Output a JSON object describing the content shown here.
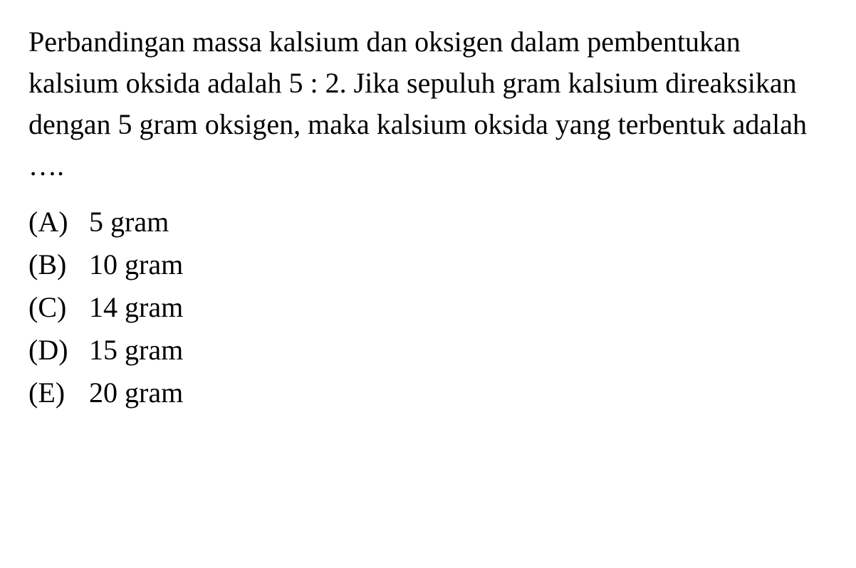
{
  "question": {
    "text": "Perbandingan massa kalsium dan oksigen dalam pembentukan kalsium oksida adalah 5 : 2. Jika sepuluh gram kalsium direaksikan dengan 5 gram oksigen, maka kalsium oksida yang terbentuk adalah ….",
    "text_color": "#000000",
    "font_size_pt": 30,
    "font_family": "serif"
  },
  "options": [
    {
      "label": "(A)",
      "text": "5 gram"
    },
    {
      "label": "(B)",
      "text": "10 gram"
    },
    {
      "label": "(C)",
      "text": "14 gram"
    },
    {
      "label": "(D)",
      "text": "15 gram"
    },
    {
      "label": "(E)",
      "text": "20 gram"
    }
  ],
  "styling": {
    "background_color": "#ffffff",
    "text_color": "#000000",
    "option_font_size_pt": 30,
    "line_height": 1.45
  }
}
